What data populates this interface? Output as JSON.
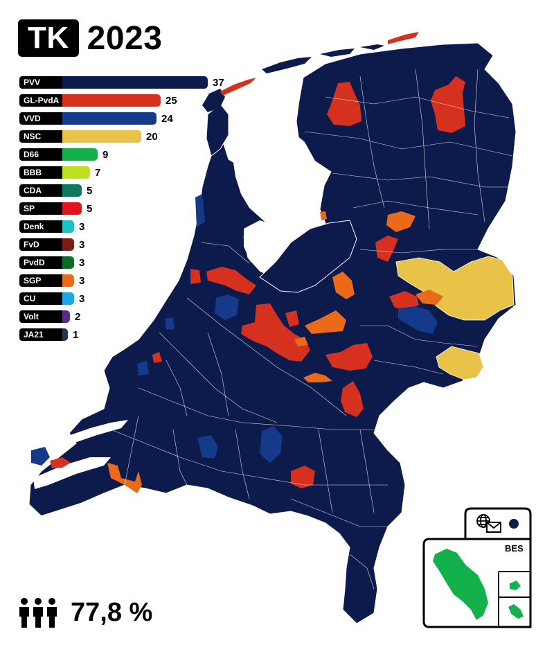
{
  "title": {
    "badge": "TK",
    "year": "2023"
  },
  "parties": [
    {
      "name": "PVV",
      "seats": 37,
      "color": "#0d1b4c"
    },
    {
      "name": "GL-PvdA",
      "seats": 25,
      "color": "#d6301e"
    },
    {
      "name": "VVD",
      "seats": 24,
      "color": "#153a8a"
    },
    {
      "name": "NSC",
      "seats": 20,
      "color": "#e8c348"
    },
    {
      "name": "D66",
      "seats": 9,
      "color": "#12b14b"
    },
    {
      "name": "BBB",
      "seats": 7,
      "color": "#bfe01c"
    },
    {
      "name": "CDA",
      "seats": 5,
      "color": "#0b7a5f"
    },
    {
      "name": "SP",
      "seats": 5,
      "color": "#e2141b"
    },
    {
      "name": "Denk",
      "seats": 3,
      "color": "#1ec0c4"
    },
    {
      "name": "FvD",
      "seats": 3,
      "color": "#7c1a14"
    },
    {
      "name": "PvdD",
      "seats": 3,
      "color": "#0b6b2b"
    },
    {
      "name": "SGP",
      "seats": 3,
      "color": "#ea6a1a"
    },
    {
      "name": "CU",
      "seats": 3,
      "color": "#19a8e8"
    },
    {
      "name": "Volt",
      "seats": 2,
      "color": "#5a2a8c"
    },
    {
      "name": "JA21",
      "seats": 1,
      "color": "#23344e"
    }
  ],
  "turnout": {
    "value": "77,8 %",
    "icon": "people-icon"
  },
  "inset": {
    "label": "BES",
    "icons": [
      "globe-icon",
      "mail-icon"
    ],
    "marker_color": "#0d1b4c",
    "island_color": "#12b14b"
  },
  "map": {
    "base_color": "#0d1b4c",
    "border_color": "#ffffff"
  }
}
